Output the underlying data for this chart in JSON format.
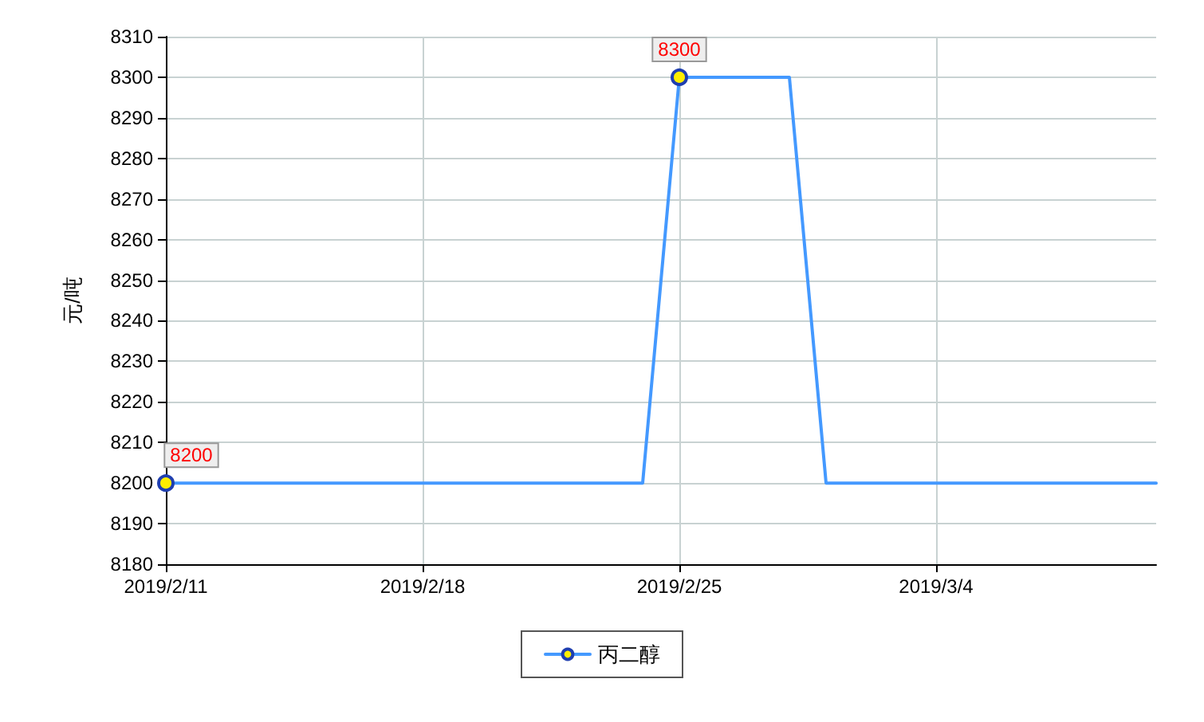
{
  "chart_data": {
    "type": "line",
    "ylabel": "元/吨",
    "x": [
      "2019-02-11",
      "2019-02-12",
      "2019-02-13",
      "2019-02-14",
      "2019-02-15",
      "2019-02-16",
      "2019-02-17",
      "2019-02-18",
      "2019-02-19",
      "2019-02-20",
      "2019-02-21",
      "2019-02-22",
      "2019-02-23",
      "2019-02-24",
      "2019-02-25",
      "2019-02-26",
      "2019-02-27",
      "2019-02-28",
      "2019-03-01",
      "2019-03-02",
      "2019-03-03",
      "2019-03-04",
      "2019-03-05",
      "2019-03-06",
      "2019-03-07",
      "2019-03-08",
      "2019-03-09",
      "2019-03-10"
    ],
    "series": [
      {
        "name": "丙二醇",
        "color": "#4499ff",
        "values": [
          8200,
          8200,
          8200,
          8200,
          8200,
          8200,
          8200,
          8200,
          8200,
          8200,
          8200,
          8200,
          8200,
          8200,
          8300,
          8300,
          8300,
          8300,
          8200,
          8200,
          8200,
          8200,
          8200,
          8200,
          8200,
          8200,
          8200,
          8200
        ],
        "value_labels": [
          "8200",
          null,
          null,
          null,
          null,
          null,
          null,
          null,
          null,
          null,
          null,
          null,
          null,
          null,
          "8300",
          null,
          null,
          null,
          null,
          null,
          null,
          null,
          null,
          null,
          null,
          null,
          null,
          null
        ]
      }
    ],
    "xlim": [
      "2019-02-11",
      "2019-03-10"
    ],
    "xticks": [
      {
        "value": "2019-02-11",
        "label": "2019/2/11"
      },
      {
        "value": "2019-02-18",
        "label": "2019/2/18"
      },
      {
        "value": "2019-02-25",
        "label": "2019/2/25"
      },
      {
        "value": "2019-03-04",
        "label": "2019/3/4"
      }
    ],
    "ylim": [
      8180,
      8310
    ],
    "yticks": [
      8180,
      8190,
      8200,
      8210,
      8220,
      8230,
      8240,
      8250,
      8260,
      8270,
      8280,
      8290,
      8300,
      8310
    ],
    "grid": true,
    "legend": "bottom",
    "line_style": "solid"
  }
}
